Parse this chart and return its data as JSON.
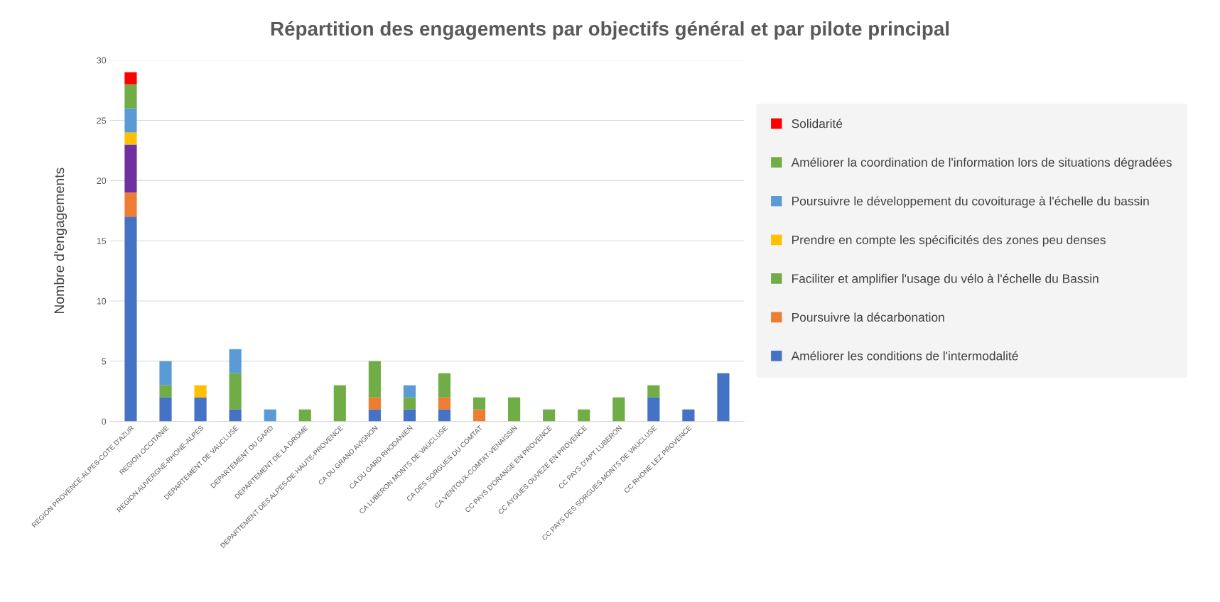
{
  "chart_data": {
    "type": "bar",
    "stacked": true,
    "title": "Répartition des engagements par objectifs général et par pilote principal",
    "ylabel": "Nombre d'engagements",
    "categories": [
      "REGION PROVENCE-ALPES-COTE D'AZUR",
      "REGION OCCITANIE",
      "REGION AUVERGNE-RHONE-ALPES",
      "DEPARTEMENT DE VAUCLUSE",
      "DEPARTEMENT DU GARD",
      "DEPARTEMENT DE LA DROME",
      "DEPARTEMENT DES ALPES-DE-HAUTE-PROVENCE",
      "CA DU GRAND AVIGNON",
      "CA DU GARD RHODANIEN",
      "CA LUBERON MONTS DE VAUCLUSE",
      "CA DES SORGUES DU COMTAT",
      "CA VENTOUX-COMTAT-VENAISSIN",
      "CC PAYS D'ORANGE EN PROVENCE",
      "CC AYGUES OUVEZE EN PROVENCE",
      "CC PAYS D'APT LUBERON",
      "CC PAYS DES SORGUES MONTS DE VAUCLUSE",
      "CC RHONE LEZ PROVENCE",
      null
    ],
    "series": [
      {
        "name": "Améliorer les conditions de l'intermodalité",
        "color": "#4472c4",
        "values": [
          17,
          2,
          2,
          1,
          null,
          null,
          null,
          1,
          1,
          1,
          null,
          null,
          null,
          null,
          null,
          2,
          1,
          4
        ]
      },
      {
        "name": "Poursuivre la décarbonation",
        "color": "#ed7d31",
        "values": [
          2,
          null,
          null,
          null,
          null,
          null,
          null,
          1,
          null,
          1,
          1,
          null,
          null,
          null,
          null,
          null,
          null,
          null
        ]
      },
      {
        "color": "#7030a0",
        "values": [
          4,
          null,
          null,
          null,
          null,
          null,
          null,
          null,
          null,
          null,
          null,
          null,
          null,
          null,
          null,
          null,
          null,
          null
        ]
      },
      {
        "name": "Faciliter et amplifier l'usage du vélo à l'échelle du Bassin",
        "color": "#70ad47",
        "values": [
          null,
          1,
          null,
          3,
          null,
          1,
          3,
          3,
          1,
          2,
          1,
          2,
          1,
          1,
          2,
          1,
          null,
          null
        ]
      },
      {
        "name": "Prendre en compte les spécificités des zones peu denses",
        "color": "#ffc000",
        "values": [
          1,
          null,
          1,
          null,
          null,
          null,
          null,
          null,
          null,
          null,
          null,
          null,
          null,
          null,
          null,
          null,
          null,
          null
        ]
      },
      {
        "name": "Poursuivre le développement du covoiturage à l'échelle du bassin",
        "color": "#5b9bd5",
        "values": [
          2,
          2,
          null,
          2,
          1,
          null,
          null,
          null,
          1,
          null,
          null,
          null,
          null,
          null,
          null,
          null,
          null,
          null
        ]
      },
      {
        "name": "Améliorer la coordination de l'information lors de situations dégradées",
        "color": "#70ad47",
        "values": [
          2,
          null,
          null,
          null,
          null,
          null,
          null,
          null,
          null,
          null,
          null,
          null,
          null,
          null,
          null,
          null,
          null,
          null
        ]
      },
      {
        "name": "Solidarité",
        "color": "#ff0000",
        "values": [
          1,
          null,
          null,
          null,
          null,
          null,
          null,
          null,
          null,
          null,
          null,
          null,
          null,
          null,
          null,
          null,
          null,
          null
        ]
      }
    ],
    "ylim": [
      0,
      30
    ],
    "yticks": [
      0,
      5,
      10,
      15,
      20,
      25,
      30
    ],
    "grid": "y",
    "legend": "right"
  }
}
